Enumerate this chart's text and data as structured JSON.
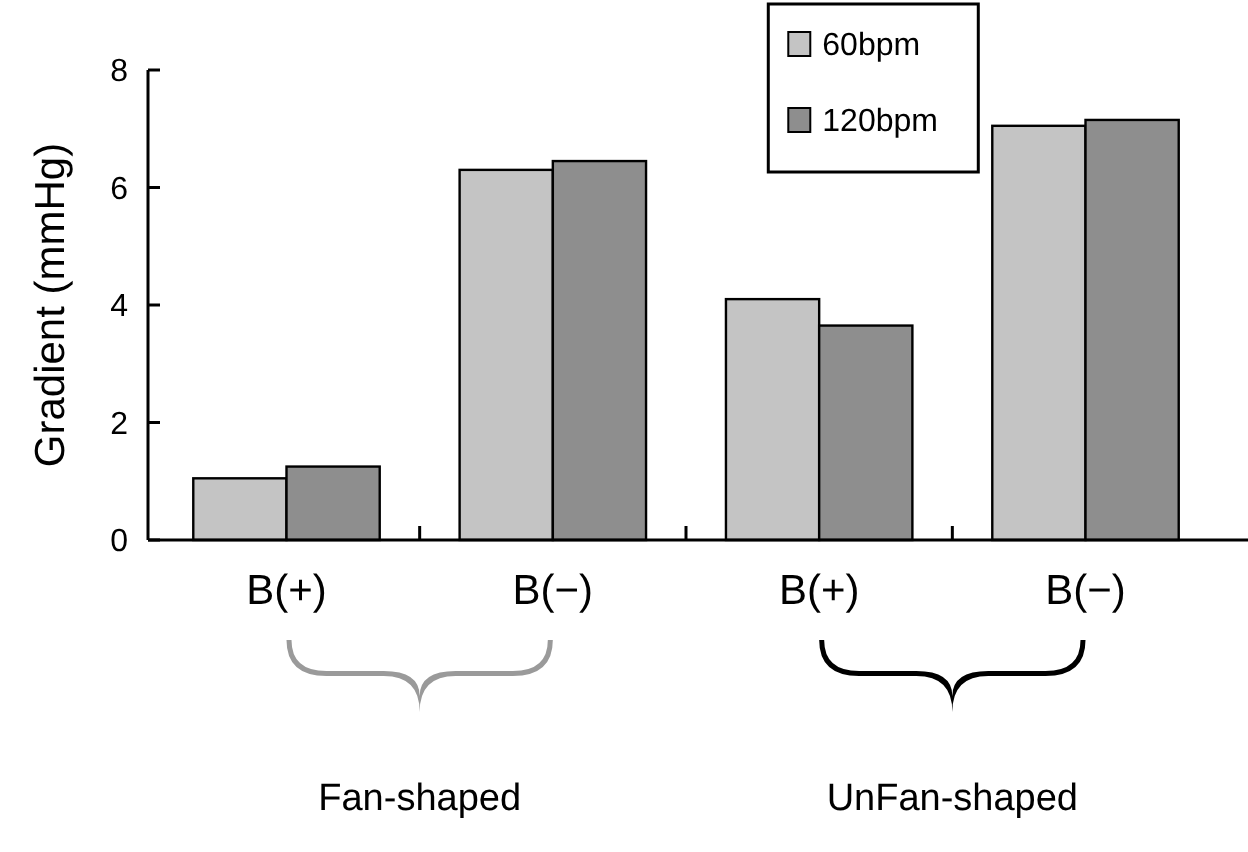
{
  "chart_data": {
    "type": "bar",
    "ylabel": "Gradient (mmHg)",
    "categories": [
      "B(+)",
      "B(−)",
      "B(+)",
      "B(−)"
    ],
    "series": [
      {
        "name": "60bpm",
        "color": "#c4c4c4",
        "values": [
          1.05,
          6.3,
          4.1,
          7.05
        ]
      },
      {
        "name": "120bpm",
        "color": "#8e8e8e",
        "values": [
          1.25,
          6.45,
          3.65,
          7.15
        ]
      }
    ],
    "ylim": [
      0,
      8
    ],
    "yticks": [
      0,
      2,
      4,
      6,
      8
    ],
    "grid": false,
    "legend": "top right",
    "annotations": [
      "Fan-shaped",
      "UnFan-shaped"
    ]
  }
}
